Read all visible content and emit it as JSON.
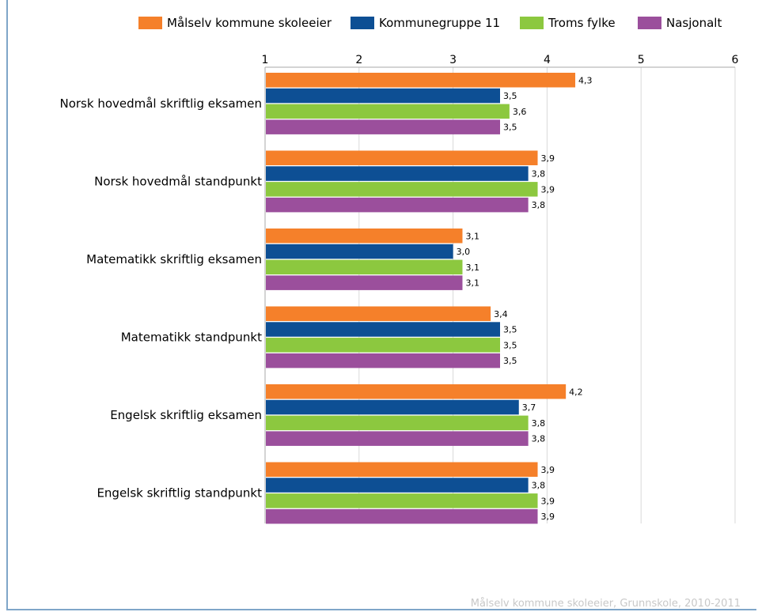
{
  "chart_data": {
    "type": "bar",
    "orientation": "horizontal",
    "categories": [
      "Norsk hovedmål skriftlig eksamen",
      "Norsk hovedmål standpunkt",
      "Matematikk skriftlig eksamen",
      "Matematikk standpunkt",
      "Engelsk skriftlig eksamen",
      "Engelsk skriftlig standpunkt"
    ],
    "series": [
      {
        "name": "Målselv kommune skoleeier",
        "color": "#f5802a",
        "values": [
          4.3,
          3.9,
          3.1,
          3.4,
          4.2,
          3.9
        ],
        "labels": [
          "4,3",
          "3,9",
          "3,1",
          "3,4",
          "4,2",
          "3,9"
        ]
      },
      {
        "name": "Kommunegruppe 11",
        "color": "#0d4f94",
        "values": [
          3.5,
          3.8,
          3.0,
          3.5,
          3.7,
          3.8
        ],
        "labels": [
          "3,5",
          "3,8",
          "3,0",
          "3,5",
          "3,7",
          "3,8"
        ]
      },
      {
        "name": "Troms fylke",
        "color": "#8cc83f",
        "values": [
          3.6,
          3.9,
          3.1,
          3.5,
          3.8,
          3.9
        ],
        "labels": [
          "3,6",
          "3,9",
          "3,1",
          "3,5",
          "3,8",
          "3,9"
        ]
      },
      {
        "name": "Nasjonalt",
        "color": "#9b4f9c",
        "values": [
          3.5,
          3.8,
          3.1,
          3.5,
          3.8,
          3.9
        ],
        "labels": [
          "3,5",
          "3,8",
          "3,1",
          "3,5",
          "3,8",
          "3,9"
        ]
      }
    ],
    "xlim": [
      1,
      6
    ],
    "xticks": [
      "1",
      "2",
      "3",
      "4",
      "5",
      "6"
    ],
    "axis_position": "top",
    "grid": true,
    "legend": "top"
  },
  "footer": {
    "source_text": "Målselv kommune skoleeier, Grunnskole, 2010-2011"
  }
}
